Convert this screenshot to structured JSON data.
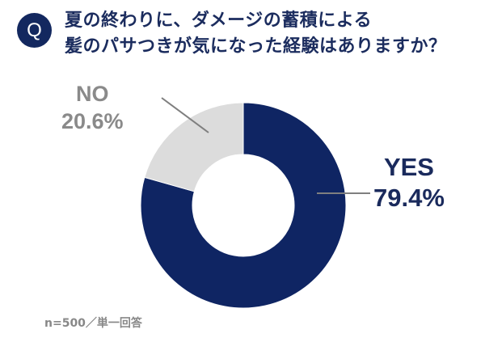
{
  "header": {
    "badge": "Q",
    "question_line1": "夏の終わりに、ダメージの蓄積による",
    "question_line2": "髪のパサつきが気になった経験はありますか？"
  },
  "labels": {
    "no_name": "NO",
    "no_value": "20.6%",
    "yes_name": "YES",
    "yes_value": "79.4%"
  },
  "footnote": "n=500／単一回答",
  "colors": {
    "yes": "#0f2563",
    "no": "#dcdcdc",
    "badge": "#13285f",
    "title": "#1b2c5e"
  },
  "chart_data": {
    "type": "pie",
    "subtype": "donut",
    "title": "夏の終わりに、ダメージの蓄積による髪のパサつきが気になった経験はありますか？",
    "categories": [
      "YES",
      "NO"
    ],
    "values": [
      79.4,
      20.6
    ],
    "unit": "%",
    "colors": [
      "#0f2563",
      "#dcdcdc"
    ],
    "start_angle": "12 o'clock, clockwise",
    "note": "n=500／単一回答"
  }
}
